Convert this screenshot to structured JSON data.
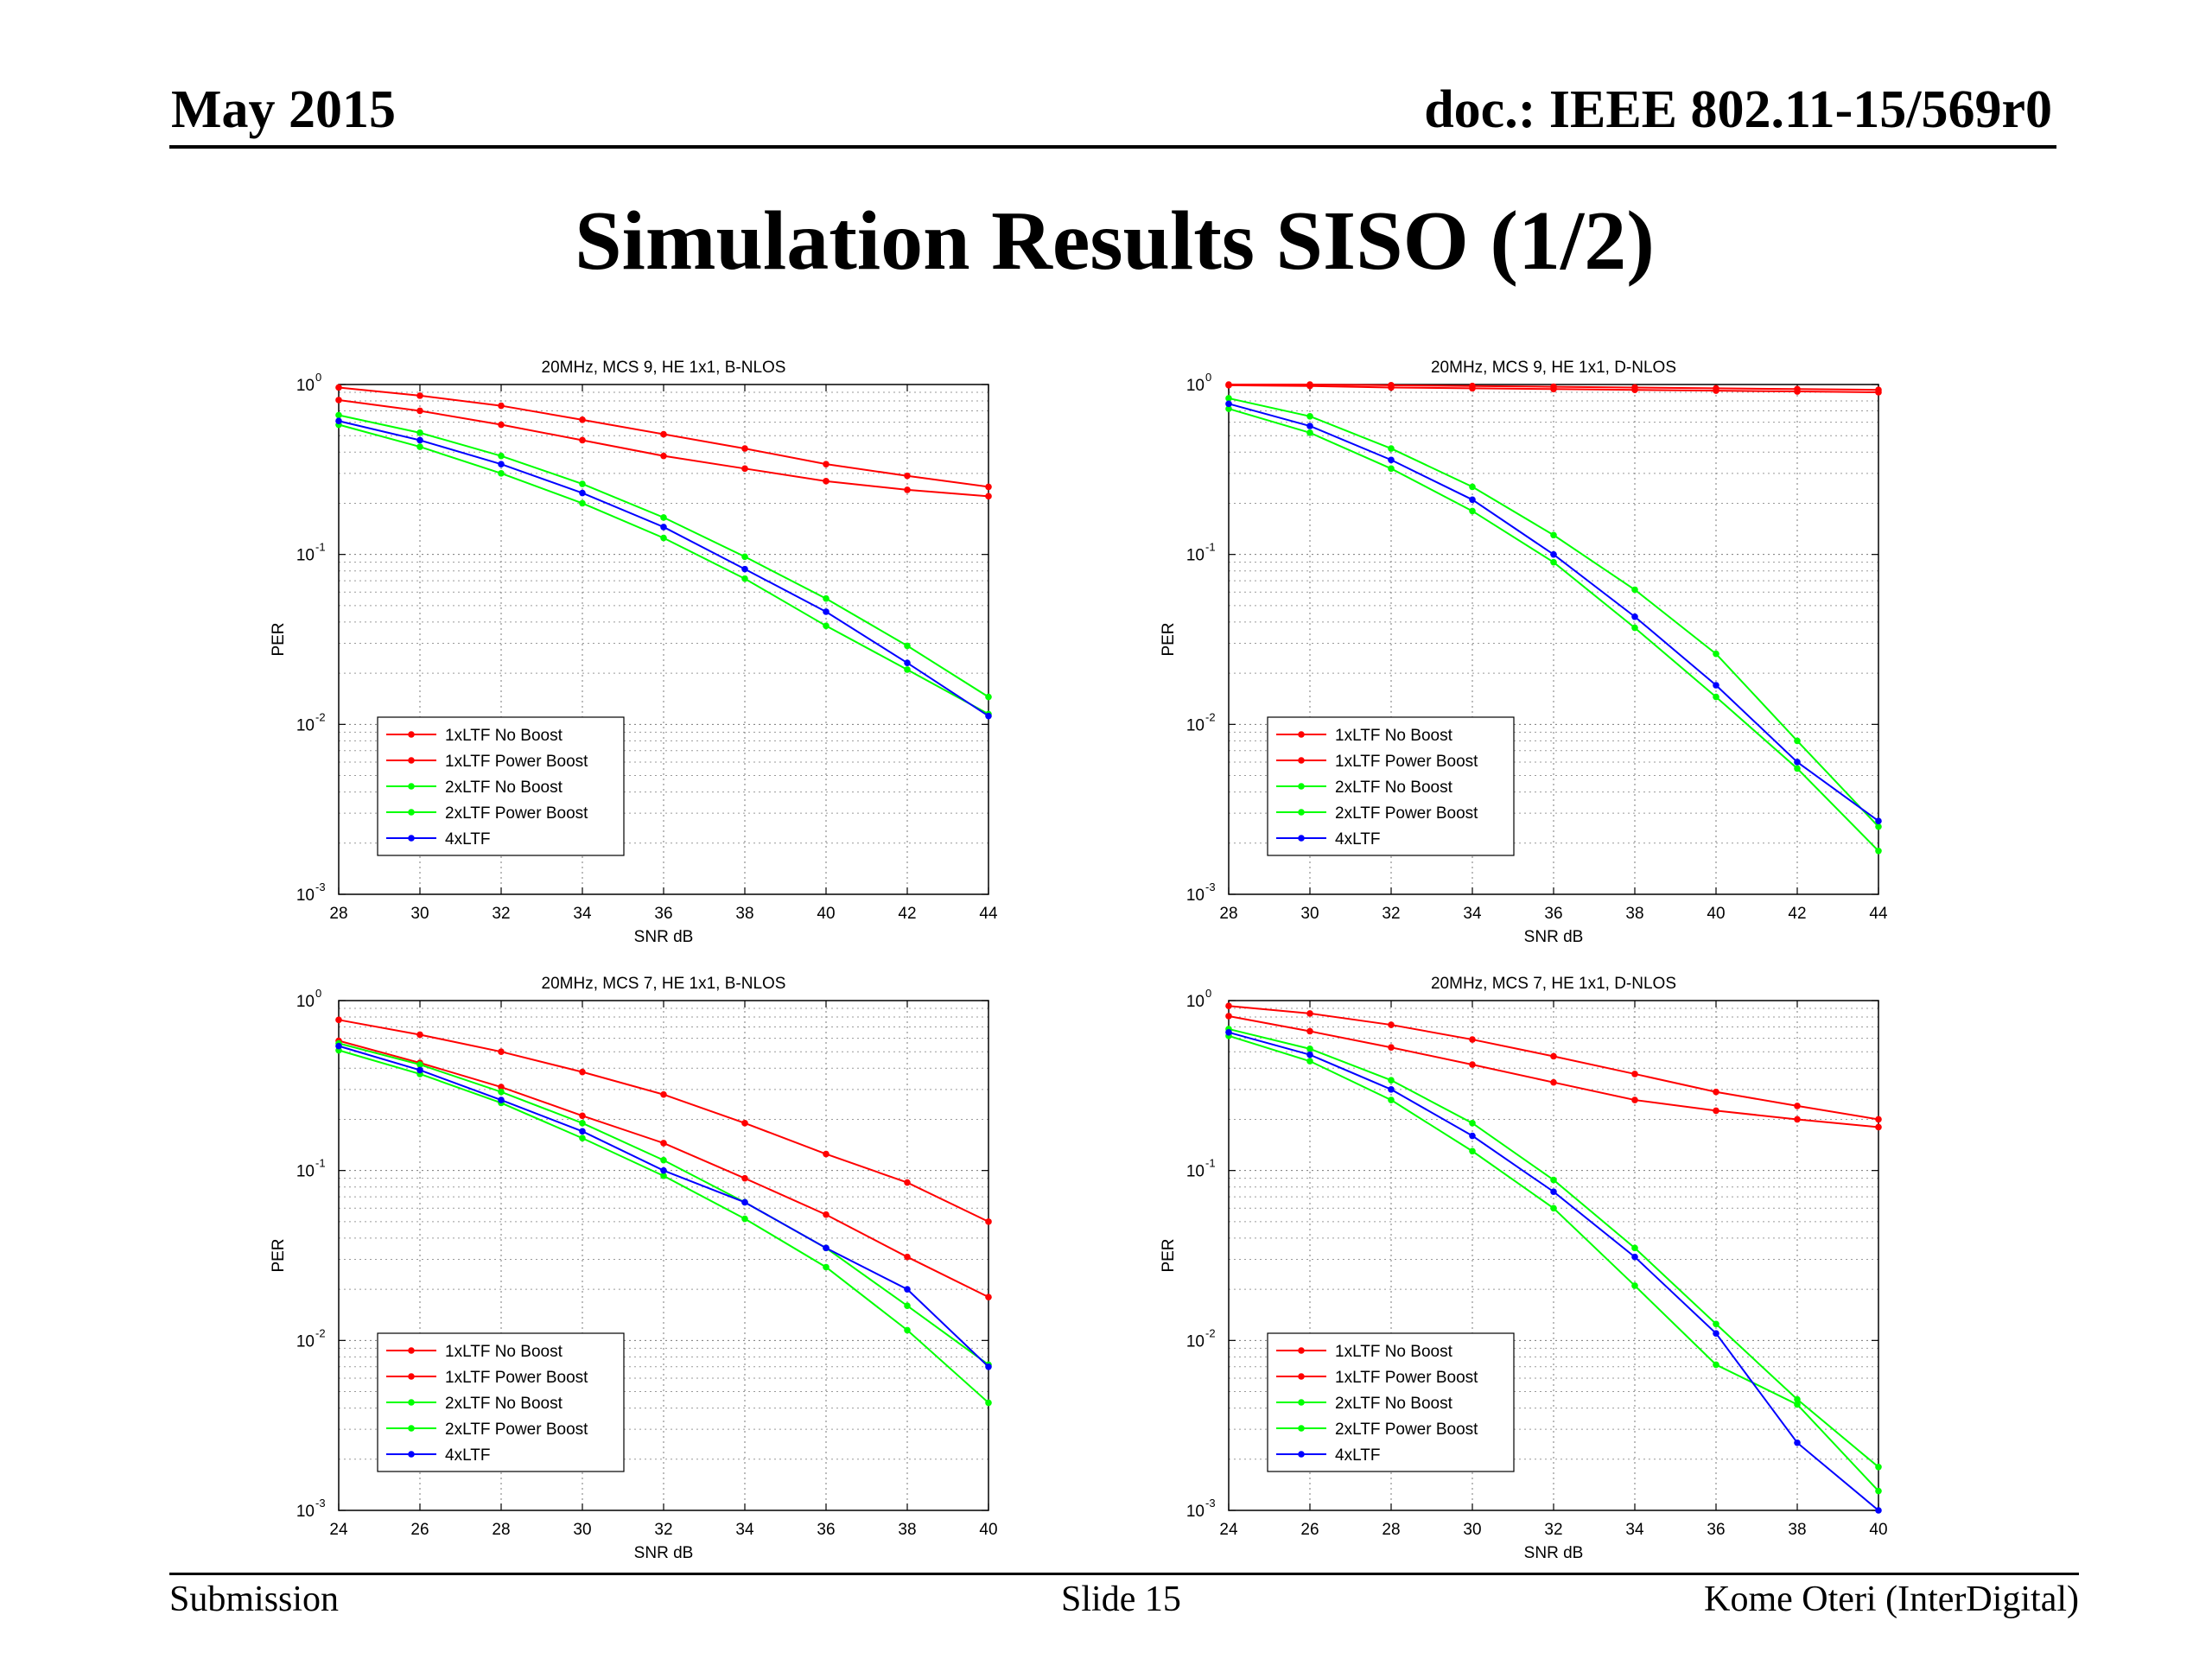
{
  "header": {
    "date": "May 2015",
    "doc": "doc.: IEEE 802.11-15/569r0"
  },
  "title": "Simulation Results SISO (1/2)",
  "footer": {
    "left": "Submission",
    "center": "Slide 15",
    "right": "Kome Oteri (InterDigital)"
  },
  "chart_data": [
    {
      "type": "line",
      "title": "20MHz, MCS 9, HE 1x1, B-NLOS",
      "xlabel": "SNR dB",
      "ylabel": "PER",
      "xlim": [
        28,
        44
      ],
      "ylim": [
        0.001,
        1
      ],
      "yscale": "log",
      "xticks": [
        28,
        30,
        32,
        34,
        36,
        38,
        40,
        42,
        44
      ],
      "yticks": [
        0.001,
        0.01,
        0.1,
        1
      ],
      "yticklabels": [
        [
          "10",
          "-3"
        ],
        [
          "10",
          "-2"
        ],
        [
          "10",
          "-1"
        ],
        [
          "10",
          "0"
        ]
      ],
      "grid": true,
      "legend_position": "bottom-left",
      "x": [
        28,
        30,
        32,
        34,
        36,
        38,
        40,
        42,
        44
      ],
      "series": [
        {
          "name": "1xLTF No Boost",
          "color": "#ff0000",
          "values": [
            0.96,
            0.86,
            0.75,
            0.62,
            0.51,
            0.42,
            0.34,
            0.29,
            0.25
          ]
        },
        {
          "name": "1xLTF Power Boost",
          "color": "#ff0000",
          "values": [
            0.81,
            0.7,
            0.58,
            0.47,
            0.38,
            0.32,
            0.27,
            0.24,
            0.22
          ]
        },
        {
          "name": "2xLTF No Boost",
          "color": "#00ff00",
          "values": [
            0.66,
            0.52,
            0.38,
            0.26,
            0.165,
            0.097,
            0.055,
            0.029,
            0.0145
          ]
        },
        {
          "name": "2xLTF Power Boost",
          "color": "#00ff00",
          "values": [
            0.58,
            0.43,
            0.3,
            0.2,
            0.125,
            0.072,
            0.038,
            0.021,
            0.0115
          ]
        },
        {
          "name": "4xLTF",
          "color": "#0000ff",
          "values": [
            0.61,
            0.47,
            0.34,
            0.23,
            0.145,
            0.082,
            0.046,
            0.023,
            0.0112
          ]
        }
      ]
    },
    {
      "type": "line",
      "title": "20MHz, MCS 9, HE 1x1, D-NLOS",
      "xlabel": "SNR dB",
      "ylabel": "PER",
      "xlim": [
        28,
        44
      ],
      "ylim": [
        0.001,
        1
      ],
      "yscale": "log",
      "xticks": [
        28,
        30,
        32,
        34,
        36,
        38,
        40,
        42,
        44
      ],
      "yticks": [
        0.001,
        0.01,
        0.1,
        1
      ],
      "yticklabels": [
        [
          "10",
          "-3"
        ],
        [
          "10",
          "-2"
        ],
        [
          "10",
          "-1"
        ],
        [
          "10",
          "0"
        ]
      ],
      "grid": true,
      "legend_position": "bottom-left",
      "x": [
        28,
        30,
        32,
        34,
        36,
        38,
        40,
        42,
        44
      ],
      "series": [
        {
          "name": "1xLTF No Boost",
          "color": "#ff0000",
          "values": [
            1.0,
            1.0,
            0.99,
            0.98,
            0.97,
            0.96,
            0.95,
            0.94,
            0.93
          ]
        },
        {
          "name": "1xLTF Power Boost",
          "color": "#ff0000",
          "values": [
            0.99,
            0.98,
            0.96,
            0.95,
            0.94,
            0.93,
            0.92,
            0.91,
            0.9
          ]
        },
        {
          "name": "2xLTF No Boost",
          "color": "#00ff00",
          "values": [
            0.83,
            0.65,
            0.42,
            0.25,
            0.13,
            0.062,
            0.026,
            0.008,
            0.0025
          ]
        },
        {
          "name": "2xLTF Power Boost",
          "color": "#00ff00",
          "values": [
            0.72,
            0.52,
            0.32,
            0.18,
            0.09,
            0.037,
            0.0145,
            0.0055,
            0.0018
          ]
        },
        {
          "name": "4xLTF",
          "color": "#0000ff",
          "values": [
            0.77,
            0.57,
            0.36,
            0.21,
            0.1,
            0.043,
            0.017,
            0.006,
            0.0027
          ]
        }
      ]
    },
    {
      "type": "line",
      "title": "20MHz, MCS 7, HE 1x1, B-NLOS",
      "xlabel": "SNR dB",
      "ylabel": "PER",
      "xlim": [
        24,
        40
      ],
      "ylim": [
        0.001,
        1
      ],
      "yscale": "log",
      "xticks": [
        24,
        26,
        28,
        30,
        32,
        34,
        36,
        38,
        40
      ],
      "yticks": [
        0.001,
        0.01,
        0.1,
        1
      ],
      "yticklabels": [
        [
          "10",
          "-3"
        ],
        [
          "10",
          "-2"
        ],
        [
          "10",
          "-1"
        ],
        [
          "10",
          "0"
        ]
      ],
      "grid": true,
      "legend_position": "bottom-left",
      "x": [
        24,
        26,
        28,
        30,
        32,
        34,
        36,
        38,
        40
      ],
      "series": [
        {
          "name": "1xLTF No Boost",
          "color": "#ff0000",
          "values": [
            0.77,
            0.63,
            0.5,
            0.38,
            0.28,
            0.19,
            0.125,
            0.085,
            0.05
          ]
        },
        {
          "name": "1xLTF Power Boost",
          "color": "#ff0000",
          "values": [
            0.58,
            0.43,
            0.31,
            0.21,
            0.145,
            0.09,
            0.055,
            0.031,
            0.018
          ]
        },
        {
          "name": "2xLTF No Boost",
          "color": "#00ff00",
          "values": [
            0.56,
            0.42,
            0.29,
            0.19,
            0.115,
            0.065,
            0.035,
            0.016,
            0.0072
          ]
        },
        {
          "name": "2xLTF Power Boost",
          "color": "#00ff00",
          "values": [
            0.51,
            0.37,
            0.25,
            0.155,
            0.093,
            0.052,
            0.027,
            0.0115,
            0.0043
          ]
        },
        {
          "name": "4xLTF",
          "color": "#0000ff",
          "values": [
            0.54,
            0.39,
            0.26,
            0.17,
            0.1,
            0.065,
            0.035,
            0.02,
            0.007
          ]
        }
      ]
    },
    {
      "type": "line",
      "title": "20MHz, MCS 7, HE 1x1, D-NLOS",
      "xlabel": "SNR dB",
      "ylabel": "PER",
      "xlim": [
        24,
        40
      ],
      "ylim": [
        0.001,
        1
      ],
      "yscale": "log",
      "xticks": [
        24,
        26,
        28,
        30,
        32,
        34,
        36,
        38,
        40
      ],
      "yticks": [
        0.001,
        0.01,
        0.1,
        1
      ],
      "yticklabels": [
        [
          "10",
          "-3"
        ],
        [
          "10",
          "-2"
        ],
        [
          "10",
          "-1"
        ],
        [
          "10",
          "0"
        ]
      ],
      "grid": true,
      "legend_position": "bottom-left",
      "x": [
        24,
        26,
        28,
        30,
        32,
        34,
        36,
        38,
        40
      ],
      "series": [
        {
          "name": "1xLTF No Boost",
          "color": "#ff0000",
          "values": [
            0.93,
            0.84,
            0.72,
            0.59,
            0.47,
            0.37,
            0.29,
            0.24,
            0.2
          ]
        },
        {
          "name": "1xLTF Power Boost",
          "color": "#ff0000",
          "values": [
            0.81,
            0.66,
            0.53,
            0.42,
            0.33,
            0.26,
            0.225,
            0.2,
            0.18
          ]
        },
        {
          "name": "2xLTF No Boost",
          "color": "#00ff00",
          "values": [
            0.68,
            0.52,
            0.34,
            0.19,
            0.088,
            0.035,
            0.0125,
            0.0045,
            0.0018
          ]
        },
        {
          "name": "2xLTF Power Boost",
          "color": "#00ff00",
          "values": [
            0.62,
            0.44,
            0.26,
            0.13,
            0.06,
            0.021,
            0.0072,
            0.0042,
            0.0013
          ]
        },
        {
          "name": "4xLTF",
          "color": "#0000ff",
          "values": [
            0.65,
            0.48,
            0.3,
            0.16,
            0.075,
            0.031,
            0.011,
            0.0025,
            0.001
          ]
        }
      ]
    }
  ]
}
